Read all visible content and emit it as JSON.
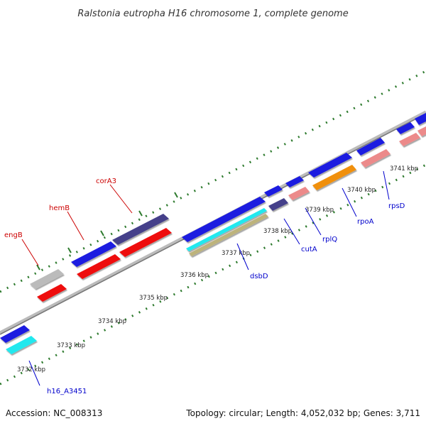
{
  "title": "Ralstonia eutropha H16 chromosome 1, complete genome",
  "footer": {
    "accession": "Accession: NC_008313",
    "topology": "Topology: circular; Length: 4,052,032 bp; Genes: 3,711"
  },
  "colors": {
    "backbone": "#888888",
    "tick": "#2d7a2d",
    "gene_label_outer": "#cc0000",
    "gene_label_inner": "#0000cc",
    "blue": "#1a1ae0",
    "red": "#ee0b0b",
    "navy": "#44408a",
    "gray": "#bbbbbb",
    "cyan": "#22e8ee",
    "tan": "#bdb37c",
    "pink": "#ec8a8a",
    "orange": "#f09010"
  },
  "kbp_labels": [
    "3732 kbp",
    "3733 kbp",
    "3734 kbp",
    "3735 kbp",
    "3736 kbp",
    "3737 kbp",
    "3738 kbp",
    "3739 kbp",
    "3740 kbp",
    "3741 kbp"
  ],
  "outer_gene_labels": [
    {
      "text": "engB"
    },
    {
      "text": "hemB"
    },
    {
      "text": "corA3"
    }
  ],
  "inner_gene_labels": [
    {
      "text": "h16_A3451"
    },
    {
      "text": "dsbD"
    },
    {
      "text": "cutA"
    },
    {
      "text": "rplQ"
    },
    {
      "text": "rpoA"
    },
    {
      "text": "rpsD"
    }
  ]
}
